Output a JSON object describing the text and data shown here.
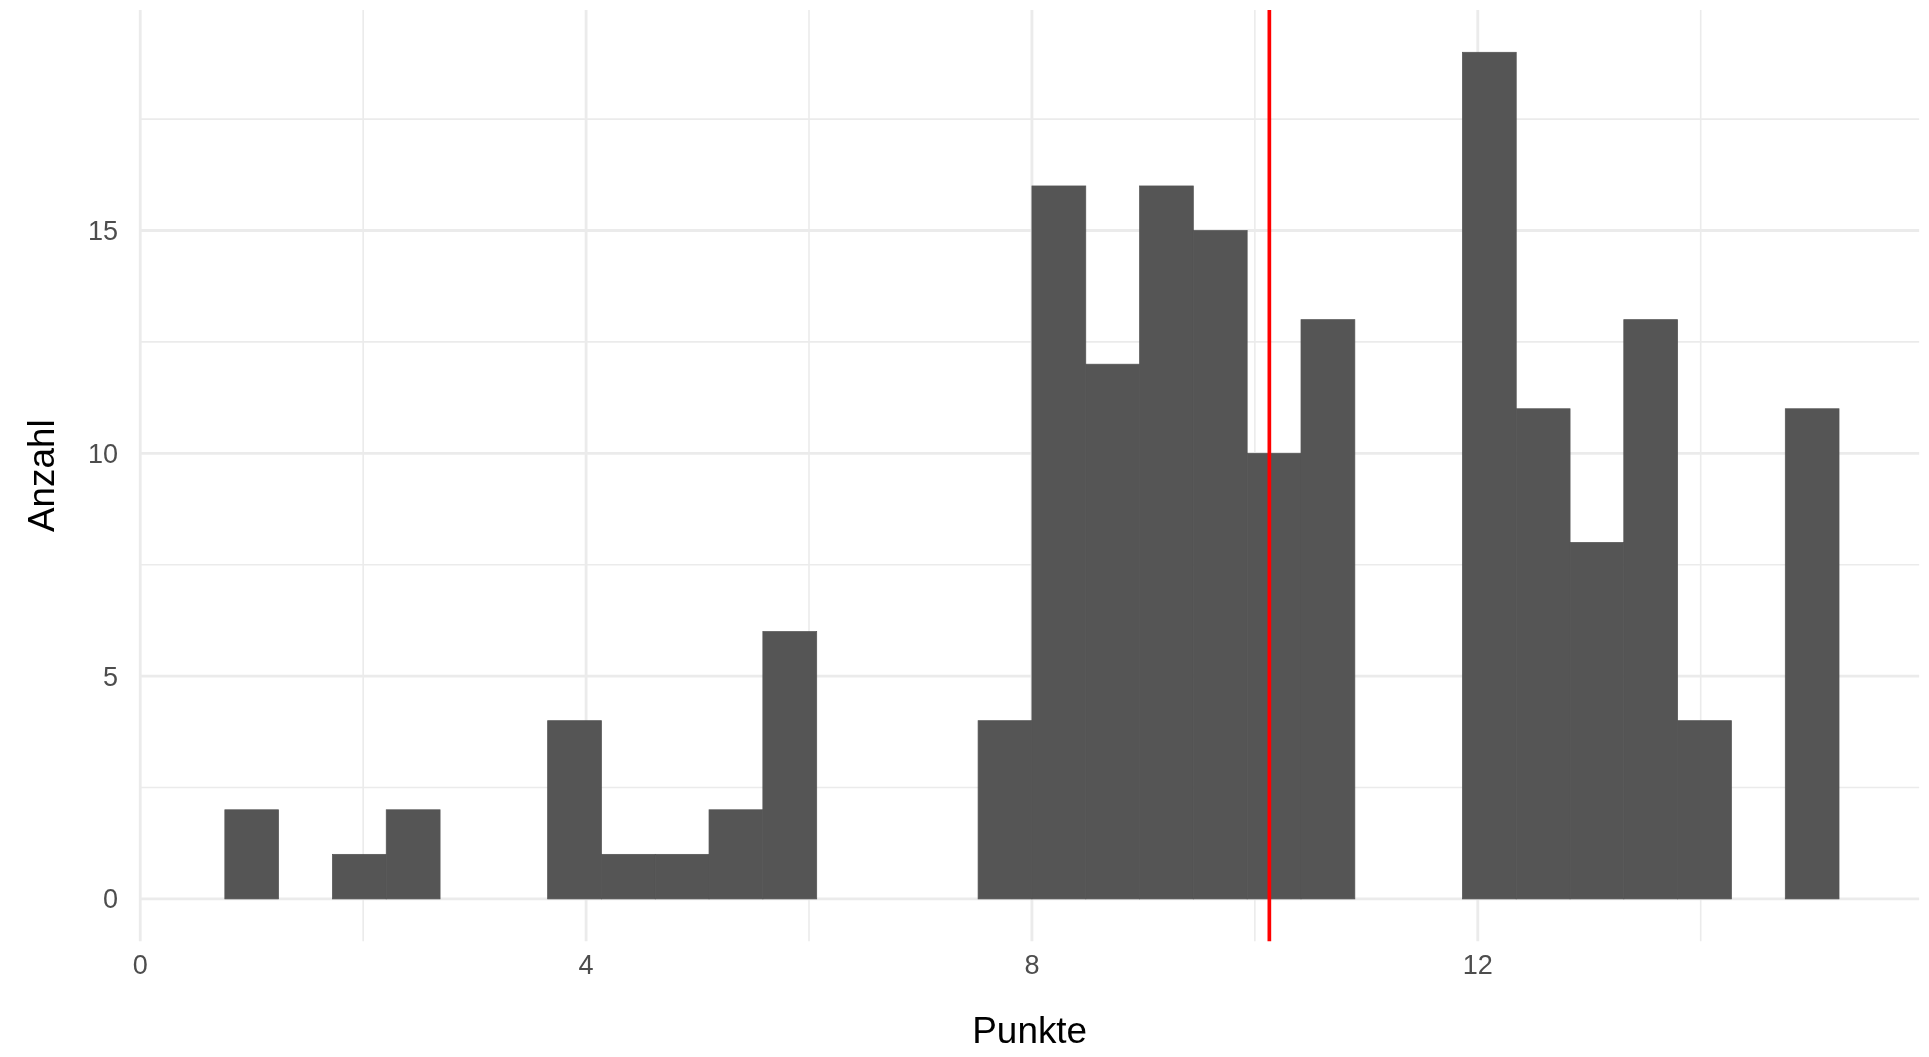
{
  "chart_data": {
    "type": "histogram",
    "xlabel": "Punkte",
    "ylabel": "Anzahl",
    "color": "#555555",
    "bins": [
      0.759,
      1.241,
      1.724,
      2.207,
      2.69,
      3.172,
      3.655,
      4.138,
      4.621,
      5.103,
      5.586,
      6.069,
      6.552,
      7.034,
      7.517,
      8.0,
      8.483,
      8.966,
      9.448,
      9.931,
      10.414,
      10.897,
      11.379,
      11.862,
      12.345,
      12.828,
      13.31,
      13.793,
      14.276,
      14.759,
      15.241
    ],
    "values": [
      2,
      0,
      1,
      2,
      0,
      0,
      4,
      1,
      1,
      2,
      6,
      0,
      0,
      0,
      4,
      16,
      12,
      16,
      15,
      10,
      13,
      0,
      0,
      19,
      11,
      8,
      13,
      4,
      0,
      11
    ],
    "xlim": [
      0,
      15.96
    ],
    "ylim": [
      -0.95,
      19.95
    ],
    "xticks": [
      0,
      {
        "value": 2,
        "label": null
      },
      4,
      {
        "value": 6,
        "label": null
      },
      8,
      {
        "value": 10,
        "label": null
      },
      12,
      {
        "value": 14,
        "label": null
      }
    ],
    "yticks": [
      0,
      {
        "value": 2.5,
        "label": null
      },
      5,
      {
        "value": 7.5,
        "label": null
      },
      10,
      {
        "value": 12.5,
        "label": null
      },
      15,
      {
        "value": 17.5,
        "label": null
      }
    ],
    "grid": true,
    "ref_lines": [
      {
        "axis": "x",
        "value": 10.13,
        "color": "#ff0000"
      }
    ]
  }
}
